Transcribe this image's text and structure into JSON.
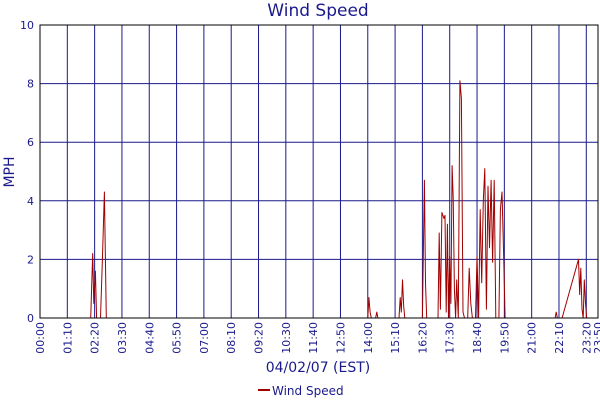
{
  "chart_data": {
    "type": "line",
    "title": "Wind Speed",
    "xlabel": "04/02/07 (EST)",
    "ylabel": "MPH",
    "ylim": [
      0,
      10
    ],
    "y_ticks": [
      0,
      2,
      4,
      6,
      8,
      10
    ],
    "x_tick_labels": [
      "00:00",
      "01:10",
      "02:20",
      "03:30",
      "04:40",
      "05:50",
      "07:00",
      "08:10",
      "09:20",
      "10:30",
      "11:40",
      "12:50",
      "14:00",
      "15:10",
      "16:20",
      "17:30",
      "18:40",
      "19:50",
      "21:00",
      "22:10",
      "23:20",
      "23:50"
    ],
    "grid": true,
    "legend": "bottom-center",
    "series": [
      {
        "name": "Wind Speed",
        "color": "#a00000",
        "x": [
          "00:00",
          "02:10",
          "02:15",
          "02:18",
          "02:22",
          "02:25",
          "02:30",
          "02:35",
          "02:40",
          "02:45",
          "02:50",
          "02:55",
          "14:00",
          "14:03",
          "14:06",
          "14:09",
          "14:20",
          "14:23",
          "14:26",
          "14:30",
          "15:20",
          "15:23",
          "15:26",
          "15:29",
          "15:32",
          "15:35",
          "15:38",
          "15:42",
          "16:20",
          "16:25",
          "16:28",
          "16:31",
          "16:35",
          "17:00",
          "17:03",
          "17:06",
          "17:10",
          "17:15",
          "17:18",
          "17:21",
          "17:24",
          "17:27",
          "17:30",
          "17:33",
          "17:36",
          "17:39",
          "17:42",
          "17:45",
          "17:48",
          "17:52",
          "17:56",
          "18:00",
          "18:04",
          "18:08",
          "18:12",
          "18:16",
          "18:20",
          "18:24",
          "18:28",
          "18:32",
          "18:36",
          "18:40",
          "18:44",
          "18:48",
          "18:52",
          "18:56",
          "19:00",
          "19:04",
          "19:08",
          "19:12",
          "19:16",
          "19:20",
          "19:24",
          "19:28",
          "19:32",
          "19:36",
          "19:40",
          "19:44",
          "19:48",
          "19:52",
          "19:56",
          "20:00",
          "20:04",
          "20:08",
          "20:12",
          "20:16",
          "20:20",
          "20:24",
          "20:28",
          "20:32",
          "20:36",
          "20:40",
          "20:44",
          "20:48",
          "20:52",
          "20:56",
          "21:00",
          "21:04",
          "21:08",
          "21:12",
          "21:16",
          "21:20",
          "21:24",
          "22:00",
          "22:03",
          "22:06",
          "22:09",
          "22:15",
          "22:18",
          "23:00",
          "23:03",
          "23:06",
          "23:09",
          "23:12",
          "23:15",
          "23:18",
          "23:21",
          "23:24",
          "23:27",
          "23:30",
          "23:34",
          "23:38",
          "23:42",
          "23:46",
          "23:50"
        ],
        "values": [
          0,
          0,
          2.2,
          0.5,
          1.6,
          0,
          0,
          0,
          2.0,
          4.3,
          0,
          0,
          0,
          0.7,
          0.2,
          0,
          0,
          0.2,
          0,
          0,
          0,
          0.7,
          0.2,
          1.3,
          0.4,
          0,
          0,
          0,
          0,
          4.7,
          1.2,
          0,
          0,
          0,
          2.9,
          0.3,
          3.6,
          3.4,
          3.5,
          0.2,
          3.2,
          0,
          2.1,
          0.5,
          5.2,
          4.1,
          1.0,
          0,
          1.3,
          0,
          8.1,
          7.5,
          0.2,
          0,
          0,
          0,
          1.7,
          0.5,
          0,
          0,
          0,
          2.1,
          0,
          3.7,
          1.2,
          4.0,
          5.1,
          0.3,
          4.5,
          2.4,
          4.7,
          1.9,
          4.7,
          0,
          0,
          0,
          3.7,
          4.3,
          2.2,
          0,
          0,
          0,
          0,
          0,
          0,
          0,
          0,
          0,
          0,
          0,
          0,
          0,
          0,
          0,
          0,
          0,
          0,
          0,
          0,
          0,
          0,
          0,
          0,
          0,
          0.2,
          0,
          0,
          0,
          0,
          2.0,
          0.8,
          1.7,
          0.3,
          0,
          1.3,
          0.5,
          0,
          0,
          0,
          0,
          0,
          0,
          0,
          0,
          0
        ]
      }
    ]
  }
}
